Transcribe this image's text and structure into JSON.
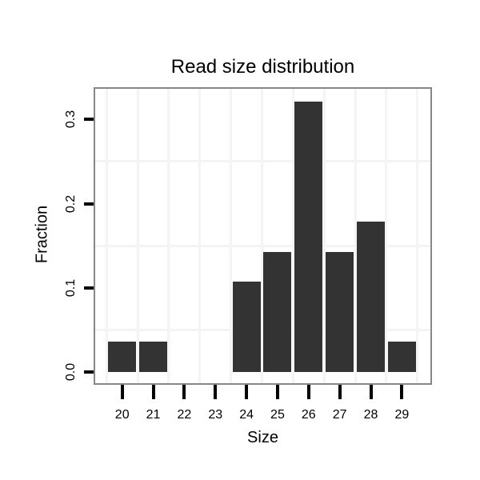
{
  "chart_data": {
    "type": "bar",
    "title": "Read size distribution",
    "xlabel": "Size",
    "ylabel": "Fraction",
    "categories": [
      "20",
      "21",
      "22",
      "23",
      "24",
      "25",
      "26",
      "27",
      "28",
      "29"
    ],
    "values": [
      0.0357,
      0.0357,
      0,
      0,
      0.1071,
      0.1429,
      0.3214,
      0.1429,
      0.1786,
      0.0357
    ],
    "yticks": [
      0.0,
      0.1,
      0.2,
      0.3
    ],
    "ytick_labels": [
      "0.0",
      "0.1",
      "0.2",
      "0.3"
    ],
    "ylim": [
      -0.016,
      0.338
    ],
    "grid": "minor gridlines only: vertical at half-integer x, horizontal at 0.05/0.15/0.25",
    "minor_grid_y_values": [
      0.05,
      0.15,
      0.25
    ],
    "legend": "none",
    "colors": {
      "bar": "#333333",
      "panel_border": "#878787",
      "gridline": "#f4f4f4",
      "text": "#000000",
      "background": "#ffffff"
    }
  }
}
